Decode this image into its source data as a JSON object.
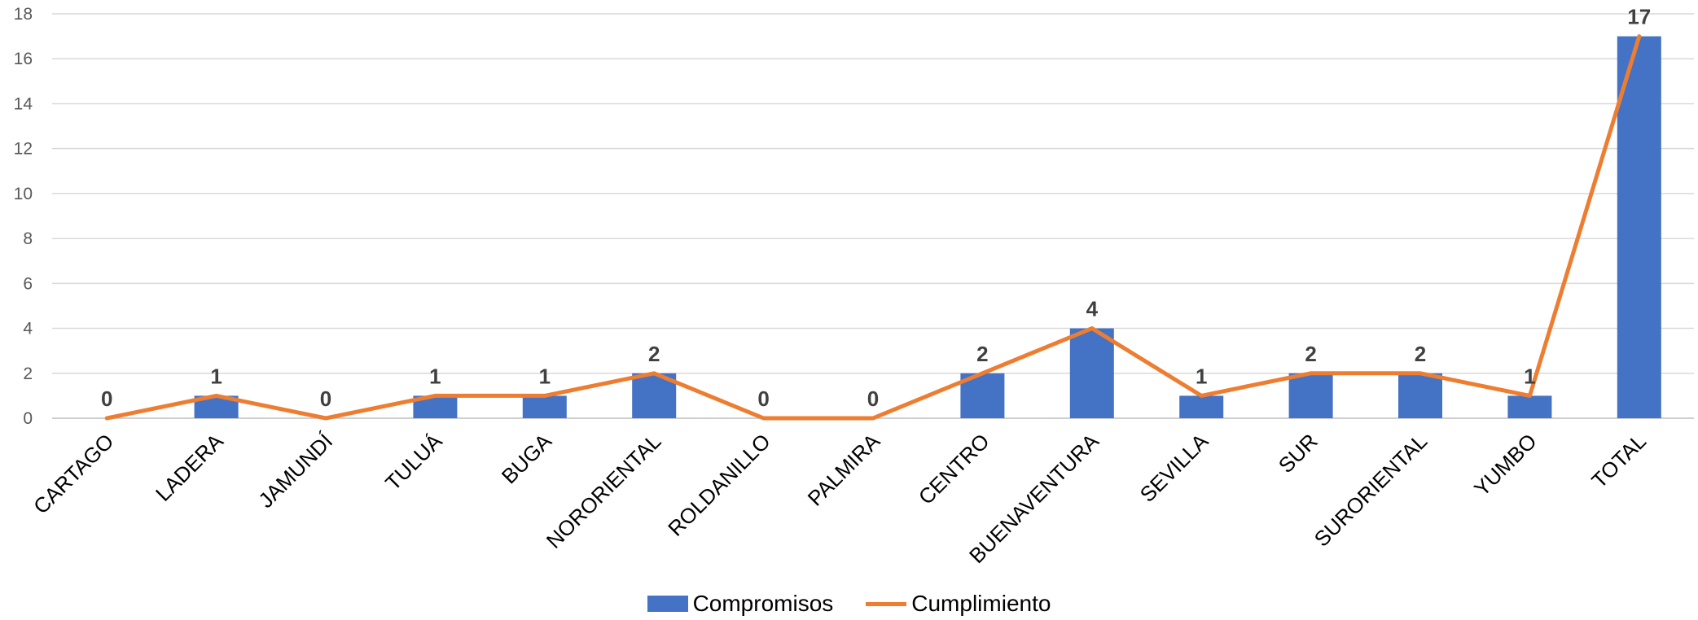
{
  "chart_data": {
    "type": "bar",
    "title": "",
    "xlabel": "",
    "ylabel": "",
    "ylim": [
      0,
      18
    ],
    "yticks": [
      0,
      2,
      4,
      6,
      8,
      10,
      12,
      14,
      16,
      18
    ],
    "grid": true,
    "legend_position": "bottom",
    "categories": [
      "CARTAGO",
      "LADERA",
      "JAMUNDÍ",
      "TULUÁ",
      "BUGA",
      "NORORIENTAL",
      "ROLDANILLO",
      "PALMIRA",
      "CENTRO",
      "BUENAVENTURA",
      "SEVILLA",
      "SUR",
      "SURORIENTAL",
      "YUMBO",
      "TOTAL"
    ],
    "series": [
      {
        "name": "Compromisos",
        "type": "bar",
        "color": "#4472C4",
        "values": [
          0,
          1,
          0,
          1,
          1,
          2,
          0,
          0,
          2,
          4,
          1,
          2,
          2,
          1,
          17
        ]
      },
      {
        "name": "Cumplimiento",
        "type": "line",
        "color": "#ED7D31",
        "values": [
          0,
          1,
          0,
          1,
          1,
          2,
          0,
          0,
          2,
          4,
          1,
          2,
          2,
          1,
          17
        ]
      }
    ],
    "data_labels": [
      "0",
      "1",
      "0",
      "1",
      "1",
      "2",
      "0",
      "0",
      "2",
      "4",
      "1",
      "2",
      "2",
      "1",
      "17"
    ]
  }
}
